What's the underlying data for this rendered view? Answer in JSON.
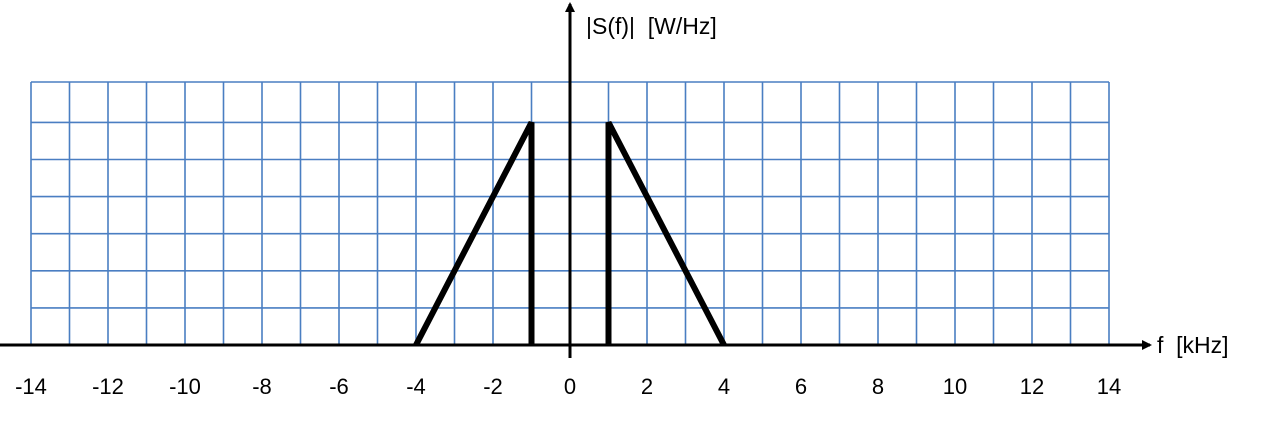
{
  "colors": {
    "grid": "#4a7ec2",
    "axis": "#000000",
    "spectrum": "#000000",
    "background": "#ffffff"
  },
  "chart_data": {
    "type": "line",
    "title": "",
    "xlabel": "f  [kHz]",
    "ylabel": "|S(f)|  [W/Hz]",
    "xlim": [
      -14,
      14
    ],
    "ylim": [
      0,
      7
    ],
    "grid": true,
    "grid_step_x": 1,
    "grid_step_y": 1,
    "x_tick_labels": [
      "-14",
      "-12",
      "-10",
      "-8",
      "-6",
      "-4",
      "-2",
      "0",
      "2",
      "4",
      "6",
      "8",
      "10",
      "12",
      "14"
    ],
    "x_ticks": [
      -14,
      -12,
      -10,
      -8,
      -6,
      -4,
      -2,
      0,
      2,
      4,
      6,
      8,
      10,
      12,
      14
    ],
    "series": [
      {
        "x": [
          -4,
          -1,
          -1
        ],
        "y": [
          0,
          6,
          0
        ]
      },
      {
        "x": [
          1,
          1,
          4
        ],
        "y": [
          0,
          6,
          0
        ]
      }
    ]
  }
}
